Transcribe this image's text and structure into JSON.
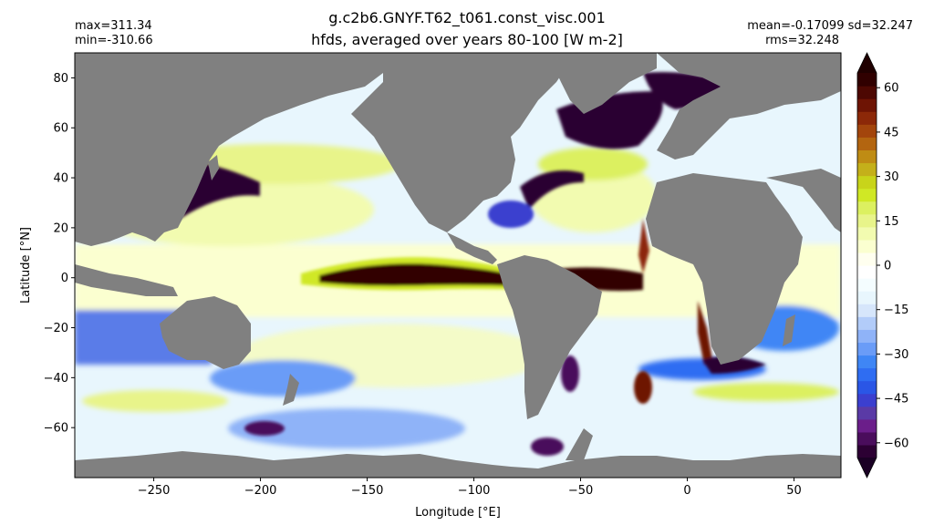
{
  "header": {
    "title_line1": "g.c2b6.GNYF.T62_t061.const_visc.001",
    "title_line2": "hfds, averaged over years 80-100 [W m-2]",
    "max_label": "max=311.34",
    "min_label": "min=-310.66",
    "mean_sd_label": "mean=-0.17099 sd=32.247",
    "rms_label": "rms=32.248"
  },
  "chart_data": {
    "type": "heatmap",
    "title": "hfds, averaged over years 80-100 [W m-2]",
    "xlabel": "Longitude [°E]",
    "ylabel": "Latitude [°N]",
    "xlim": [
      -287,
      72
    ],
    "ylim": [
      -80,
      90
    ],
    "xticks": [
      -250,
      -200,
      -150,
      -100,
      -50,
      0,
      50
    ],
    "yticks": [
      -60,
      -40,
      -20,
      0,
      20,
      40,
      60,
      80
    ],
    "land_color": "#808080",
    "colorbar": {
      "ticks": [
        -60,
        -45,
        -30,
        -15,
        0,
        15,
        30,
        45,
        60
      ],
      "range": [
        -65,
        65
      ],
      "extend": "both",
      "colors": [
        "#2c0033",
        "#4a0d5c",
        "#6b1e8a",
        "#5a3aa6",
        "#3b3fcf",
        "#2a56e6",
        "#2f6df2",
        "#3f86f5",
        "#6a9cf7",
        "#8fb3f8",
        "#b2ccf9",
        "#d6e6fb",
        "#e8f6fd",
        "#f4fdff",
        "#ffffff",
        "#ffffef",
        "#fbffd0",
        "#f2fbb0",
        "#e8f48a",
        "#dcf060",
        "#d0e825",
        "#c8d41a",
        "#c4b01a",
        "#bf8c14",
        "#b36510",
        "#a3450c",
        "#8c2808",
        "#6e1404",
        "#4d0802",
        "#300000"
      ],
      "under_color": "#1a0024",
      "over_color": "#200000"
    }
  }
}
